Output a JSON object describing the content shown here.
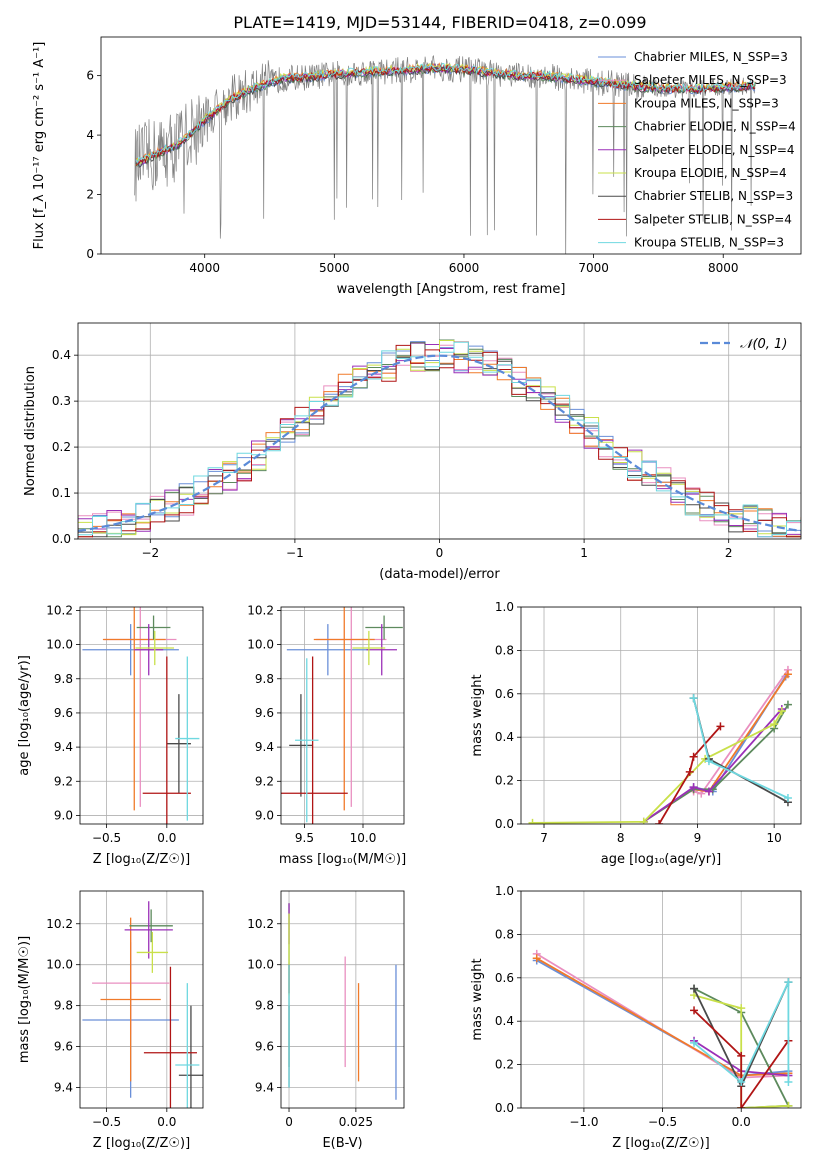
{
  "figure_title": "PLATE=1419, MJD=53144, FIBERID=0418, z=0.099",
  "colors": {
    "Chabrier MILES": "#6a8fd8",
    "Salpeter MILES": "#e98fc0",
    "Kroupa MILES": "#f07a2a",
    "Chabrier ELODIE": "#5d8a5d",
    "Salpeter ELODIE": "#9b30b8",
    "Kroupa ELODIE": "#c9e04a",
    "Chabrier STELIB": "#4a4a4a",
    "Salpeter STELIB": "#b01515",
    "Kroupa STELIB": "#6fd8e0",
    "data": "#808080",
    "gaussian": "#5a8ad8"
  },
  "chart_data": [
    {
      "id": "spectrum",
      "type": "line",
      "xlabel": "wavelength [Angstrom, rest frame]",
      "ylabel": "Flux [f_λ 10⁻¹⁷ erg cm⁻² s⁻¹ A⁻¹]",
      "xlim": [
        3200,
        8600
      ],
      "ylim": [
        0,
        7.3
      ],
      "xticks": [
        4000,
        5000,
        6000,
        7000,
        8000
      ],
      "yticks": [
        0,
        2,
        4,
        6
      ],
      "legend": [
        "Chabrier MILES, N_SSP=3",
        "Salpeter MILES, N_SSP=3",
        "Kroupa MILES, N_SSP=3",
        "Chabrier ELODIE, N_SSP=4",
        "Salpeter ELODIE, N_SSP=4",
        "Kroupa ELODIE, N_SSP=4",
        "Chabrier STELIB, N_SSP=3",
        "Salpeter STELIB, N_SSP=4",
        "Kroupa STELIB, N_SSP=3"
      ],
      "legend_position": "right",
      "continuum": {
        "x": [
          3450,
          3600,
          3800,
          4000,
          4200,
          4400,
          4600,
          4800,
          5000,
          5200,
          5400,
          5600,
          5800,
          6000,
          6200,
          6400,
          6600,
          6800,
          7000,
          7200,
          7400,
          7600,
          7800,
          8000,
          8200
        ],
        "y": [
          3.0,
          3.3,
          3.7,
          4.5,
          5.2,
          5.6,
          5.9,
          5.95,
          6.05,
          6.1,
          6.15,
          6.2,
          6.25,
          6.2,
          6.1,
          6.0,
          6.0,
          5.9,
          5.8,
          5.7,
          5.6,
          5.55,
          5.55,
          5.6,
          5.65
        ]
      },
      "grid": false
    },
    {
      "id": "residuals",
      "type": "step",
      "xlabel": "(data-model)/error",
      "ylabel": "Normed distribution",
      "xlim": [
        -2.5,
        2.5
      ],
      "ylim": [
        0,
        0.47
      ],
      "xticks": [
        -2,
        -1,
        0,
        1,
        2
      ],
      "yticks": [
        0.0,
        0.1,
        0.2,
        0.3,
        0.4
      ],
      "legend": [
        "𝒩(0, 1)"
      ],
      "legend_position": "top-right",
      "grid": true
    },
    {
      "id": "age_vs_Z",
      "type": "errorbar",
      "xlabel": "Z [log₁₀(Z/Z☉)]",
      "ylabel": "age  [log₁₀(age/yr)]",
      "xlim": [
        -0.72,
        0.3
      ],
      "ylim": [
        8.95,
        10.22
      ],
      "xticks": [
        -0.5,
        0.0
      ],
      "yticks": [
        9.0,
        9.2,
        9.4,
        9.6,
        9.8,
        10.0,
        10.2
      ],
      "points": [
        {
          "series": "Chabrier MILES",
          "x": -0.3,
          "y": 9.97,
          "xerr": 0.4,
          "yerr": 0.15
        },
        {
          "series": "Salpeter MILES",
          "x": -0.22,
          "y": 10.03,
          "xerr": 0.3,
          "yerr": 0.98
        },
        {
          "series": "Kroupa MILES",
          "x": -0.27,
          "y": 10.03,
          "xerr": 0.26,
          "yerr": 1.0
        },
        {
          "series": "Chabrier ELODIE",
          "x": -0.11,
          "y": 10.1,
          "xerr": 0.14,
          "yerr": 0.07
        },
        {
          "series": "Salpeter ELODIE",
          "x": -0.15,
          "y": 9.97,
          "xerr": 0.12,
          "yerr": 0.15
        },
        {
          "series": "Kroupa ELODIE",
          "x": -0.1,
          "y": 9.98,
          "xerr": 0.16,
          "yerr": 0.1
        },
        {
          "series": "Chabrier STELIB",
          "x": 0.1,
          "y": 9.42,
          "xerr": 0.1,
          "yerr": 0.29
        },
        {
          "series": "Salpeter STELIB",
          "x": 0.0,
          "y": 9.13,
          "xerr": 0.2,
          "yerr": 0.8
        },
        {
          "series": "Kroupa STELIB",
          "x": 0.17,
          "y": 9.45,
          "xerr": 0.1,
          "yerr": 0.48
        }
      ]
    },
    {
      "id": "age_vs_mass",
      "type": "errorbar",
      "xlabel": "mass [log₁₀(M/M☉)]",
      "ylabel": "",
      "xlim": [
        9.3,
        10.35
      ],
      "ylim": [
        8.95,
        10.22
      ],
      "xticks": [
        9.5,
        10.0
      ],
      "yticks": [
        9.0,
        9.2,
        9.4,
        9.6,
        9.8,
        10.0,
        10.2
      ],
      "points": [
        {
          "series": "Chabrier MILES",
          "x": 9.7,
          "y": 9.97,
          "xerr": 0.35,
          "yerr": 0.15
        },
        {
          "series": "Salpeter MILES",
          "x": 9.9,
          "y": 10.03,
          "xerr": 0.3,
          "yerr": 0.98
        },
        {
          "series": "Kroupa MILES",
          "x": 9.84,
          "y": 10.03,
          "xerr": 0.26,
          "yerr": 1.0
        },
        {
          "series": "Chabrier ELODIE",
          "x": 10.18,
          "y": 10.1,
          "xerr": 0.16,
          "yerr": 0.07
        },
        {
          "series": "Salpeter ELODIE",
          "x": 10.16,
          "y": 9.97,
          "xerr": 0.13,
          "yerr": 0.15
        },
        {
          "series": "Kroupa ELODIE",
          "x": 10.05,
          "y": 9.98,
          "xerr": 0.14,
          "yerr": 0.1
        },
        {
          "series": "Chabrier STELIB",
          "x": 9.47,
          "y": 9.41,
          "xerr": 0.1,
          "yerr": 0.3
        },
        {
          "series": "Salpeter STELIB",
          "x": 9.57,
          "y": 9.13,
          "xerr": 0.3,
          "yerr": 0.8
        },
        {
          "series": "Kroupa STELIB",
          "x": 9.52,
          "y": 9.44,
          "xerr": 0.1,
          "yerr": 0.48
        }
      ]
    },
    {
      "id": "weight_vs_age",
      "type": "line",
      "xlabel": "age  [log₁₀(age/yr)]",
      "ylabel": "mass weight",
      "xlim": [
        6.7,
        10.35
      ],
      "ylim": [
        0,
        1.0
      ],
      "xticks": [
        7,
        8,
        9,
        10
      ],
      "yticks": [
        0.0,
        0.2,
        0.4,
        0.6,
        0.8,
        1.0
      ],
      "grid": true,
      "series": [
        {
          "name": "Chabrier MILES",
          "x": [
            8.95,
            9.2,
            10.15
          ],
          "y": [
            0.17,
            0.15,
            0.68
          ]
        },
        {
          "name": "Salpeter MILES",
          "x": [
            8.95,
            9.05,
            10.18
          ],
          "y": [
            0.15,
            0.14,
            0.71
          ]
        },
        {
          "name": "Kroupa MILES",
          "x": [
            8.95,
            9.15,
            10.18
          ],
          "y": [
            0.16,
            0.15,
            0.69
          ]
        },
        {
          "name": "Chabrier ELODIE",
          "x": [
            8.3,
            8.95,
            9.2,
            10.0,
            10.18
          ],
          "y": [
            0.01,
            0.16,
            0.16,
            0.44,
            0.55
          ]
        },
        {
          "name": "Salpeter ELODIE",
          "x": [
            8.3,
            8.95,
            9.15,
            10.1
          ],
          "y": [
            0.01,
            0.17,
            0.15,
            0.53
          ]
        },
        {
          "name": "Kroupa ELODIE",
          "x": [
            6.85,
            8.3,
            9.1,
            10.0,
            10.1
          ],
          "y": [
            0.005,
            0.01,
            0.3,
            0.46,
            0.52
          ]
        },
        {
          "name": "Chabrier STELIB",
          "x": [
            8.95,
            9.15,
            10.18
          ],
          "y": [
            0.58,
            0.3,
            0.1
          ]
        },
        {
          "name": "Salpeter STELIB",
          "x": [
            8.5,
            8.9,
            8.95,
            9.3
          ],
          "y": [
            0.0,
            0.24,
            0.31,
            0.45
          ]
        },
        {
          "name": "Kroupa STELIB",
          "x": [
            8.95,
            9.15,
            10.18
          ],
          "y": [
            0.58,
            0.29,
            0.12
          ]
        }
      ]
    },
    {
      "id": "mass_vs_Z",
      "type": "errorbar",
      "xlabel": "Z [log₁₀(Z/Z☉)]",
      "ylabel": "mass [log₁₀(M/M☉)]",
      "xlim": [
        -0.72,
        0.3
      ],
      "ylim": [
        9.3,
        10.36
      ],
      "xticks": [
        -0.5,
        0.0
      ],
      "yticks": [
        9.4,
        9.6,
        9.8,
        10.0,
        10.2
      ],
      "points": [
        {
          "series": "Chabrier MILES",
          "x": -0.3,
          "y": 9.73,
          "xerr": 0.4,
          "yerr": 0.38
        },
        {
          "series": "Salpeter MILES",
          "x": -0.3,
          "y": 9.91,
          "xerr": 0.32,
          "yerr": 0.25
        },
        {
          "series": "Kroupa MILES",
          "x": -0.3,
          "y": 9.83,
          "xerr": 0.25,
          "yerr": 0.4
        },
        {
          "series": "Chabrier ELODIE",
          "x": -0.13,
          "y": 10.19,
          "xerr": 0.18,
          "yerr": 0.08
        },
        {
          "series": "Salpeter ELODIE",
          "x": -0.15,
          "y": 10.17,
          "xerr": 0.2,
          "yerr": 0.14
        },
        {
          "series": "Kroupa ELODIE",
          "x": -0.12,
          "y": 10.06,
          "xerr": 0.13,
          "yerr": 0.1
        },
        {
          "series": "Chabrier STELIB",
          "x": 0.2,
          "y": 9.46,
          "xerr": 0.1,
          "yerr": 0.34
        },
        {
          "series": "Salpeter STELIB",
          "x": 0.03,
          "y": 9.57,
          "xerr": 0.22,
          "yerr": 0.42
        },
        {
          "series": "Kroupa STELIB",
          "x": 0.17,
          "y": 9.51,
          "xerr": 0.1,
          "yerr": 0.4
        }
      ]
    },
    {
      "id": "mass_vs_EBV",
      "type": "errorbar",
      "xlabel": "E(B-V)",
      "ylabel": "",
      "xlim": [
        -0.003,
        0.043
      ],
      "ylim": [
        9.3,
        10.36
      ],
      "xticks": [
        0.0,
        0.025
      ],
      "yticks": [
        9.4,
        9.6,
        9.8,
        10.0,
        10.2
      ],
      "points": [
        {
          "series": "Chabrier MILES",
          "x": 0.04,
          "y": 9.67,
          "xerr": 0,
          "yerr": 0.33
        },
        {
          "series": "Salpeter MILES",
          "x": 0.021,
          "y": 9.77,
          "xerr": 0,
          "yerr": 0.27
        },
        {
          "series": "Kroupa MILES",
          "x": 0.026,
          "y": 9.67,
          "xerr": 0,
          "yerr": 0.24
        },
        {
          "series": "Chabrier ELODIE",
          "x": 0.0,
          "y": 9.9,
          "xerr": 0,
          "yerr": 0.4
        },
        {
          "series": "Salpeter ELODIE",
          "x": 0.0,
          "y": 10.2,
          "xerr": 0,
          "yerr": 0.1
        },
        {
          "series": "Kroupa ELODIE",
          "x": 0.0,
          "y": 10.05,
          "xerr": 0,
          "yerr": 0.2
        },
        {
          "series": "Chabrier STELIB",
          "x": 0.0,
          "y": 9.6,
          "xerr": 0,
          "yerr": 0.2
        },
        {
          "series": "Salpeter STELIB",
          "x": 0.0,
          "y": 9.93,
          "xerr": 0,
          "yerr": 0.07
        },
        {
          "series": "Kroupa STELIB",
          "x": 0.0,
          "y": 9.7,
          "xerr": 0,
          "yerr": 0.3
        }
      ]
    },
    {
      "id": "weight_vs_Z",
      "type": "line",
      "xlabel": "Z [log₁₀(Z/Z☉)]",
      "ylabel": "mass weight",
      "xlim": [
        -1.4,
        0.38
      ],
      "ylim": [
        0,
        1.0
      ],
      "xticks": [
        -1.0,
        -0.5,
        0.0
      ],
      "yticks": [
        0.0,
        0.2,
        0.4,
        0.6,
        0.8,
        1.0
      ],
      "grid": true,
      "series": [
        {
          "name": "Chabrier MILES",
          "x": [
            -1.3,
            0.0,
            0.3
          ],
          "y": [
            0.68,
            0.15,
            0.17
          ]
        },
        {
          "name": "Salpeter MILES",
          "x": [
            -1.3,
            0.0,
            0.3
          ],
          "y": [
            0.71,
            0.14,
            0.15
          ]
        },
        {
          "name": "Kroupa MILES",
          "x": [
            -1.3,
            0.0,
            0.3
          ],
          "y": [
            0.69,
            0.15,
            0.16
          ]
        },
        {
          "name": "Chabrier ELODIE",
          "x": [
            -0.3,
            0.0,
            0.3,
            0.0
          ],
          "y": [
            0.55,
            0.44,
            0.01,
            0.0
          ]
        },
        {
          "name": "Salpeter ELODIE",
          "x": [
            -0.3,
            0.0,
            0.3
          ],
          "y": [
            0.31,
            0.17,
            0.15
          ]
        },
        {
          "name": "Kroupa ELODIE",
          "x": [
            -0.3,
            0.0,
            0.0,
            0.3
          ],
          "y": [
            0.52,
            0.46,
            0.0,
            0.01
          ]
        },
        {
          "name": "Chabrier STELIB",
          "x": [
            -0.3,
            0.0,
            0.3
          ],
          "y": [
            0.55,
            0.1,
            0.58
          ]
        },
        {
          "name": "Salpeter STELIB",
          "x": [
            -0.3,
            0.0,
            0.0,
            0.3
          ],
          "y": [
            0.45,
            0.24,
            0.0,
            0.31
          ]
        },
        {
          "name": "Kroupa STELIB",
          "x": [
            -0.3,
            0.0,
            0.3,
            0.3
          ],
          "y": [
            0.3,
            0.12,
            0.58,
            0.12
          ]
        }
      ]
    }
  ]
}
